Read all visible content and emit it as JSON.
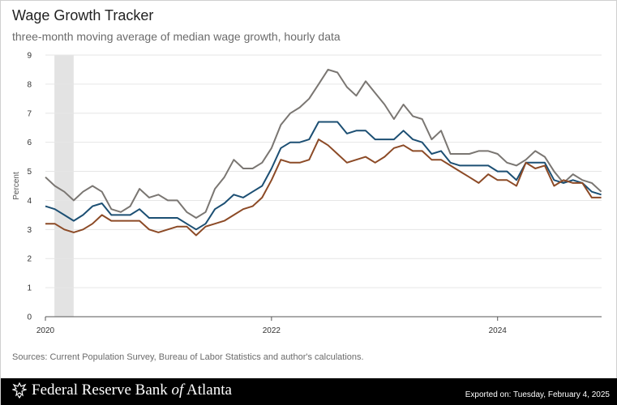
{
  "header": {
    "title": "Wage Growth Tracker",
    "subtitle": "three-month moving average of median wage growth, hourly data"
  },
  "footer": {
    "sources": "Sources: Current Population Survey, Bureau of Labor Statistics and author's calculations.",
    "brand_name_prefix": "Federal Reserve Bank ",
    "brand_name_of": "of",
    "brand_name_suffix": " Atlanta",
    "exported": "Exported on: Tuesday, February 4, 2025",
    "logo_icon": "eagle-icon"
  },
  "chart_data": {
    "type": "line",
    "title": "Wage Growth Tracker",
    "ylabel": "Percent",
    "xlabel": "",
    "ylim": [
      0,
      9
    ],
    "yticks": [
      "0",
      "1",
      "2",
      "3",
      "4",
      "5",
      "6",
      "7",
      "8",
      "9"
    ],
    "xlim": [
      2020.0,
      2024.92
    ],
    "xticks": [
      {
        "value": 2020.0,
        "label": "2020"
      },
      {
        "value": 2022.0,
        "label": "2022"
      },
      {
        "value": 2024.0,
        "label": "2024"
      }
    ],
    "grid": true,
    "shaded_region": {
      "start": 2020.08,
      "end": 2020.25,
      "color": "#e3e3e3"
    },
    "x": [
      2020.0,
      2020.083,
      2020.167,
      2020.25,
      2020.333,
      2020.417,
      2020.5,
      2020.583,
      2020.667,
      2020.75,
      2020.833,
      2020.917,
      2021.0,
      2021.083,
      2021.167,
      2021.25,
      2021.333,
      2021.417,
      2021.5,
      2021.583,
      2021.667,
      2021.75,
      2021.833,
      2021.917,
      2022.0,
      2022.083,
      2022.167,
      2022.25,
      2022.333,
      2022.417,
      2022.5,
      2022.583,
      2022.667,
      2022.75,
      2022.833,
      2022.917,
      2023.0,
      2023.083,
      2023.167,
      2023.25,
      2023.333,
      2023.417,
      2023.5,
      2023.583,
      2023.667,
      2023.75,
      2023.833,
      2023.917,
      2024.0,
      2024.083,
      2024.167,
      2024.25,
      2024.333,
      2024.417,
      2024.5,
      2024.583,
      2024.667,
      2024.75,
      2024.833,
      2024.917
    ],
    "series": [
      {
        "color": "#7a7672",
        "values": [
          4.8,
          4.5,
          4.3,
          4.0,
          4.3,
          4.5,
          4.3,
          3.7,
          3.6,
          3.8,
          4.4,
          4.1,
          4.2,
          4.0,
          4.0,
          3.6,
          3.4,
          3.6,
          4.4,
          4.8,
          5.4,
          5.1,
          5.1,
          5.3,
          5.8,
          6.6,
          7.0,
          7.2,
          7.5,
          8.0,
          8.5,
          8.4,
          7.9,
          7.6,
          8.1,
          7.7,
          7.3,
          6.8,
          7.3,
          6.9,
          6.8,
          6.1,
          6.4,
          5.6,
          5.6,
          5.6,
          5.7,
          5.7,
          5.6,
          5.3,
          5.2,
          5.4,
          5.7,
          5.5,
          5.0,
          4.6,
          4.9,
          4.7,
          4.6,
          4.3
        ]
      },
      {
        "color": "#1c4f73",
        "values": [
          3.8,
          3.7,
          3.5,
          3.3,
          3.5,
          3.8,
          3.9,
          3.5,
          3.5,
          3.5,
          3.7,
          3.4,
          3.4,
          3.4,
          3.4,
          3.2,
          3.0,
          3.2,
          3.7,
          3.9,
          4.2,
          4.1,
          4.3,
          4.5,
          5.1,
          5.8,
          6.0,
          6.0,
          6.1,
          6.7,
          6.7,
          6.7,
          6.3,
          6.4,
          6.4,
          6.1,
          6.1,
          6.1,
          6.4,
          6.1,
          6.0,
          5.6,
          5.7,
          5.3,
          5.2,
          5.2,
          5.2,
          5.2,
          5.0,
          5.0,
          4.7,
          5.3,
          5.3,
          5.3,
          4.7,
          4.6,
          4.7,
          4.6,
          4.3,
          4.2
        ]
      },
      {
        "color": "#8c4a26",
        "values": [
          3.2,
          3.2,
          3.0,
          2.9,
          3.0,
          3.2,
          3.5,
          3.3,
          3.3,
          3.3,
          3.3,
          3.0,
          2.9,
          3.0,
          3.1,
          3.1,
          2.8,
          3.1,
          3.2,
          3.3,
          3.5,
          3.7,
          3.8,
          4.1,
          4.7,
          5.4,
          5.3,
          5.3,
          5.4,
          6.1,
          5.9,
          5.6,
          5.3,
          5.4,
          5.5,
          5.3,
          5.5,
          5.8,
          5.9,
          5.7,
          5.7,
          5.4,
          5.4,
          5.2,
          5.0,
          4.8,
          4.6,
          4.9,
          4.7,
          4.7,
          4.5,
          5.3,
          5.1,
          5.2,
          4.5,
          4.7,
          4.6,
          4.6,
          4.1,
          4.1
        ]
      }
    ]
  }
}
